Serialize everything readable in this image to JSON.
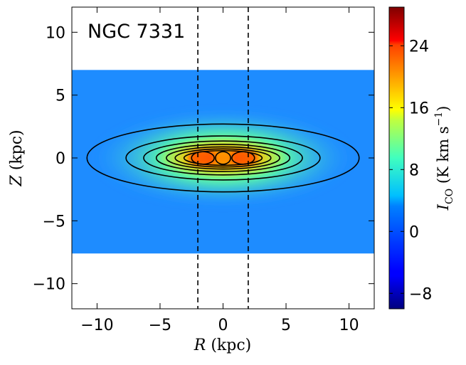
{
  "chart_data": {
    "type": "heatmap",
    "title": "NGC 7331",
    "xlabel_symbol": "R",
    "xlabel_unit": " (kpc)",
    "ylabel_symbol": "Z",
    "ylabel_unit": " (kpc)",
    "xlim": [
      -12,
      12
    ],
    "ylim": [
      -12,
      12
    ],
    "x_ticks": [
      {
        "value": -10,
        "label": "−10"
      },
      {
        "value": -5,
        "label": "−5"
      },
      {
        "value": 0,
        "label": "0"
      },
      {
        "value": 5,
        "label": "5"
      },
      {
        "value": 10,
        "label": "10"
      }
    ],
    "y_ticks": [
      {
        "value": 10,
        "label": "10"
      },
      {
        "value": 5,
        "label": "5"
      },
      {
        "value": 0,
        "label": "0"
      },
      {
        "value": -5,
        "label": "−5"
      },
      {
        "value": -10,
        "label": "−10"
      }
    ],
    "data_extent": {
      "z_top": 7.0,
      "z_bottom": -7.6
    },
    "vertical_lines_x": [
      -2,
      2
    ],
    "contours": [
      {
        "a": 10.8,
        "b": 2.7
      },
      {
        "a": 7.7,
        "b": 1.75
      },
      {
        "a": 6.3,
        "b": 1.35
      },
      {
        "a": 5.3,
        "b": 1.08
      },
      {
        "a": 4.5,
        "b": 0.88
      },
      {
        "a": 3.8,
        "b": 0.72
      },
      {
        "a": 3.1,
        "b": 0.58
      }
    ],
    "inner_contours": [
      {
        "cx": -1.6,
        "a": 0.9,
        "b": 0.5
      },
      {
        "cx": 1.6,
        "a": 0.9,
        "b": 0.5
      },
      {
        "cx": 0,
        "a": 0.6,
        "b": 0.5
      }
    ],
    "colorbar": {
      "label_symbol": "I",
      "label_sub": "CO",
      "label_unit": " (K km s",
      "label_exp": "−1",
      "label_close": ")",
      "range": [
        -10,
        29
      ],
      "ticks": [
        {
          "value": -8,
          "label": "−8"
        },
        {
          "value": 0,
          "label": "0"
        },
        {
          "value": 8,
          "label": "8"
        },
        {
          "value": 16,
          "label": "16"
        },
        {
          "value": 24,
          "label": "24"
        }
      ],
      "colormap": "jet"
    }
  }
}
